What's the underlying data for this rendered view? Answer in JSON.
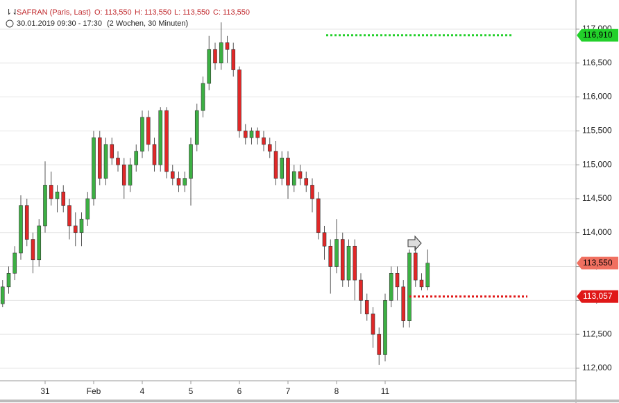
{
  "chart_data": {
    "type": "candlestick",
    "title": "SAFRAN (Paris, Last)",
    "quote": [
      "O: 113,550",
      "H: 113,550",
      "L: 113,550",
      "C: 113,550"
    ],
    "subtitle": "30.01.2019 09:30 - 17:30",
    "range_label": "(2 Wochen, 30 Minuten)",
    "up_color": "#3cb043",
    "down_color": "#e02828",
    "categories": [
      null,
      null,
      null,
      null,
      null,
      null,
      null,
      "31",
      null,
      null,
      null,
      null,
      null,
      null,
      null,
      "Feb",
      null,
      null,
      null,
      null,
      null,
      null,
      null,
      "4",
      null,
      null,
      null,
      null,
      null,
      null,
      null,
      "5",
      null,
      null,
      null,
      null,
      null,
      null,
      null,
      "6",
      null,
      null,
      null,
      null,
      null,
      null,
      null,
      "7",
      null,
      null,
      null,
      null,
      null,
      null,
      null,
      "8",
      null,
      null,
      null,
      null,
      null,
      null,
      null,
      "11",
      null,
      null,
      null,
      null,
      null,
      null,
      null
    ],
    "ohlc": [
      [
        112950,
        113300,
        112900,
        113200
      ],
      [
        113200,
        113500,
        113100,
        113400
      ],
      [
        113400,
        113800,
        113300,
        113700
      ],
      [
        113700,
        114550,
        113600,
        114400
      ],
      [
        114400,
        114500,
        113800,
        113900
      ],
      [
        113900,
        114000,
        113400,
        113600
      ],
      [
        113600,
        114200,
        113500,
        114100
      ],
      [
        114100,
        115050,
        114000,
        114700
      ],
      [
        114700,
        114900,
        114400,
        114500
      ],
      [
        114500,
        114700,
        114300,
        114600
      ],
      [
        114600,
        114700,
        114300,
        114400
      ],
      [
        114400,
        114500,
        113900,
        114100
      ],
      [
        114100,
        114300,
        113800,
        114000
      ],
      [
        114000,
        114300,
        113800,
        114200
      ],
      [
        114200,
        114600,
        114100,
        114500
      ],
      [
        114500,
        115500,
        114400,
        115400
      ],
      [
        115400,
        115500,
        114700,
        114800
      ],
      [
        114800,
        115400,
        114700,
        115300
      ],
      [
        115300,
        115400,
        115000,
        115100
      ],
      [
        115100,
        115200,
        114900,
        115000
      ],
      [
        115000,
        115100,
        114500,
        114700
      ],
      [
        114700,
        115100,
        114600,
        115000
      ],
      [
        115000,
        115300,
        114900,
        115200
      ],
      [
        115200,
        115800,
        115100,
        115700
      ],
      [
        115700,
        115800,
        115200,
        115300
      ],
      [
        115300,
        115400,
        114900,
        115000
      ],
      [
        115000,
        115850,
        114900,
        115800
      ],
      [
        115800,
        115850,
        114800,
        114900
      ],
      [
        114900,
        115000,
        114700,
        114800
      ],
      [
        114800,
        114900,
        114600,
        114700
      ],
      [
        114700,
        114900,
        114600,
        114800
      ],
      [
        114800,
        115400,
        114400,
        115300
      ],
      [
        115300,
        115900,
        115200,
        115800
      ],
      [
        115800,
        116300,
        115700,
        116200
      ],
      [
        116200,
        116900,
        116100,
        116700
      ],
      [
        116700,
        116800,
        116400,
        116500
      ],
      [
        116500,
        117100,
        116400,
        116800
      ],
      [
        116800,
        116900,
        116500,
        116700
      ],
      [
        116700,
        116800,
        116300,
        116400
      ],
      [
        116400,
        116450,
        115400,
        115500
      ],
      [
        115500,
        115600,
        115300,
        115400
      ],
      [
        115400,
        115550,
        115300,
        115500
      ],
      [
        115500,
        115550,
        115300,
        115400
      ],
      [
        115400,
        115500,
        115200,
        115300
      ],
      [
        115300,
        115400,
        115100,
        115200
      ],
      [
        115200,
        115350,
        114700,
        114800
      ],
      [
        114800,
        115200,
        114700,
        115100
      ],
      [
        115100,
        115200,
        114500,
        114700
      ],
      [
        114700,
        115000,
        114600,
        114900
      ],
      [
        114900,
        115000,
        114700,
        114800
      ],
      [
        114800,
        114900,
        114600,
        114700
      ],
      [
        114700,
        114800,
        114300,
        114500
      ],
      [
        114500,
        114600,
        113900,
        114000
      ],
      [
        114000,
        114100,
        113600,
        113800
      ],
      [
        113800,
        113900,
        113100,
        113500
      ],
      [
        113500,
        114200,
        113400,
        113900
      ],
      [
        113900,
        114000,
        113200,
        113300
      ],
      [
        113300,
        113900,
        113200,
        113800
      ],
      [
        113800,
        113900,
        113000,
        113300
      ],
      [
        113300,
        113400,
        112800,
        113000
      ],
      [
        113000,
        113100,
        112700,
        112800
      ],
      [
        112800,
        112900,
        112300,
        112500
      ],
      [
        112500,
        112600,
        112050,
        112200
      ],
      [
        112200,
        113100,
        112100,
        113000
      ],
      [
        113000,
        113500,
        112900,
        113400
      ],
      [
        113400,
        113500,
        113000,
        113200
      ],
      [
        113200,
        113300,
        112600,
        112700
      ],
      [
        112700,
        113750,
        112600,
        113700
      ],
      [
        113700,
        113800,
        113200,
        113300
      ],
      [
        113300,
        113400,
        113150,
        113200
      ],
      [
        113200,
        113750,
        113150,
        113550
      ]
    ],
    "ylim": [
      111815,
      117430
    ],
    "yticks": [
      {
        "value": 112000,
        "label": "112,000"
      },
      {
        "value": 112500,
        "label": "112,500"
      },
      {
        "value": 113000,
        "label": "113,000"
      },
      {
        "value": 113500,
        "label": "113,500"
      },
      {
        "value": 114000,
        "label": "114,000"
      },
      {
        "value": 114500,
        "label": "114,500"
      },
      {
        "value": 115000,
        "label": "115,000"
      },
      {
        "value": 115500,
        "label": "115,500"
      },
      {
        "value": 116000,
        "label": "116,000"
      },
      {
        "value": 116500,
        "label": "116,500"
      },
      {
        "value": 117000,
        "label": "117,000"
      }
    ],
    "grid": true,
    "levels": [
      {
        "value": 116910,
        "label": "116,910",
        "color": "#22d02a",
        "text_color": "#000000"
      },
      {
        "value": 113550,
        "label": "113,550",
        "color": "#f07060",
        "text_color": "#000000"
      },
      {
        "value": 113057,
        "label": "113,057",
        "color": "#e01818",
        "text_color": "#ffffff"
      }
    ]
  }
}
